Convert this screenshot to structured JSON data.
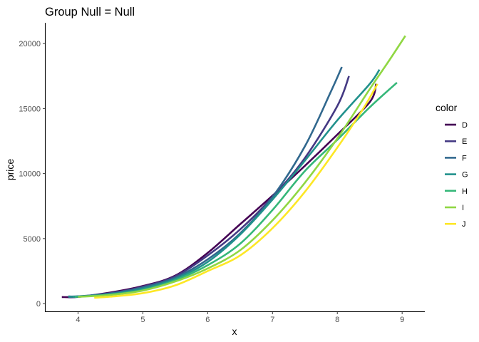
{
  "chart_data": {
    "type": "line",
    "title": "Group Null  = Null",
    "xlabel": "x",
    "ylabel": "price",
    "xlim": [
      3.5,
      9.35
    ],
    "ylim": [
      -600,
      21600
    ],
    "x_ticks": [
      4,
      5,
      6,
      7,
      8,
      9
    ],
    "y_ticks": [
      0,
      5000,
      10000,
      15000,
      20000
    ],
    "grid": false,
    "legend": {
      "title": "color",
      "position": "right"
    },
    "series": [
      {
        "name": "D",
        "color": "#440154",
        "x": [
          3.75,
          4.0,
          4.5,
          5.0,
          5.5,
          6.0,
          6.5,
          7.0,
          7.5,
          8.0,
          8.5,
          8.6
        ],
        "y": [
          500,
          520,
          850,
          1350,
          2150,
          3900,
          6100,
          8300,
          10600,
          13000,
          15500,
          16900
        ]
      },
      {
        "name": "E",
        "color": "#443983",
        "x": [
          3.85,
          4.0,
          4.5,
          5.0,
          5.5,
          6.0,
          6.5,
          7.0,
          7.5,
          8.0,
          8.18
        ],
        "y": [
          480,
          510,
          800,
          1300,
          2100,
          3700,
          5700,
          8200,
          11200,
          15200,
          17500
        ]
      },
      {
        "name": "F",
        "color": "#31688e",
        "x": [
          3.85,
          4.0,
          4.5,
          5.0,
          5.5,
          6.0,
          6.5,
          7.0,
          7.5,
          7.9,
          8.07
        ],
        "y": [
          550,
          560,
          780,
          1250,
          2000,
          3400,
          5400,
          8200,
          12100,
          16300,
          18200
        ]
      },
      {
        "name": "G",
        "color": "#21918c",
        "x": [
          3.85,
          4.0,
          4.5,
          5.0,
          5.5,
          6.0,
          6.5,
          7.0,
          7.5,
          8.0,
          8.5,
          8.65
        ],
        "y": [
          530,
          540,
          720,
          1150,
          1900,
          3200,
          5300,
          8000,
          11000,
          14100,
          16900,
          18000
        ]
      },
      {
        "name": "H",
        "color": "#35b779",
        "x": [
          3.95,
          4.0,
          4.5,
          5.0,
          5.5,
          6.0,
          6.5,
          7.0,
          7.5,
          8.0,
          8.5,
          8.92
        ],
        "y": [
          520,
          530,
          700,
          1050,
          1800,
          2950,
          4600,
          7200,
          10200,
          12600,
          15100,
          17000
        ]
      },
      {
        "name": "I",
        "color": "#90d743",
        "x": [
          4.0,
          4.5,
          5.0,
          5.5,
          6.0,
          6.5,
          7.0,
          7.5,
          8.0,
          8.5,
          8.8,
          9.05
        ],
        "y": [
          520,
          660,
          1000,
          1700,
          2700,
          4100,
          6400,
          9300,
          12700,
          16500,
          18700,
          20600
        ]
      },
      {
        "name": "J",
        "color": "#fde725",
        "x": [
          4.25,
          4.5,
          5.0,
          5.5,
          6.0,
          6.5,
          7.0,
          7.5,
          8.0,
          8.4,
          8.62
        ],
        "y": [
          450,
          530,
          800,
          1400,
          2500,
          3700,
          5800,
          8600,
          12000,
          15000,
          16900
        ]
      }
    ]
  }
}
